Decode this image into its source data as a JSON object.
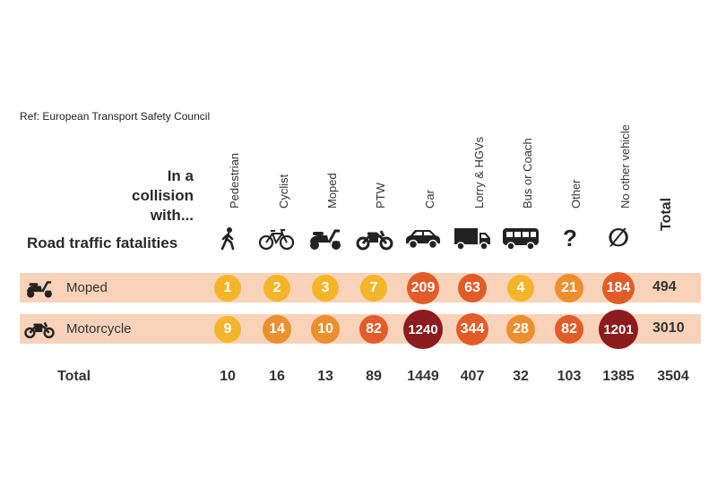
{
  "ref": "Ref: European Transport Safety Council",
  "intro": [
    "In a",
    "collision",
    "with..."
  ],
  "row_header": "Road traffic fatalities",
  "total_header": "Total",
  "total_row_label": "Total",
  "colors": {
    "band": "#f8d3b9",
    "low": "#f5b52a",
    "mid": "#ec8f2e",
    "high": "#e25c29",
    "top": "#8c1c1d"
  },
  "icons": [
    "pedestrian-icon",
    "bicycle-icon",
    "moped-icon",
    "motorcycle-icon",
    "car-icon",
    "lorry-icon",
    "bus-icon",
    "question-mark-icon",
    "empty-set-icon"
  ],
  "chart_data": {
    "type": "table",
    "columns": [
      "Pedestrian",
      "Cyclist",
      "Moped",
      "PTW",
      "Car",
      "Lorry & HGVs",
      "Bus or Coach",
      "Other",
      "No other vehicle"
    ],
    "rows": [
      {
        "name": "Moped",
        "values": [
          1,
          2,
          3,
          7,
          209,
          63,
          4,
          21,
          184
        ],
        "total": 494
      },
      {
        "name": "Motorcycle",
        "values": [
          9,
          14,
          10,
          82,
          1240,
          344,
          28,
          82,
          1201
        ],
        "total": 3010
      }
    ],
    "column_totals": [
      10,
      16,
      13,
      89,
      1449,
      407,
      32,
      103,
      1385
    ],
    "grand_total": 3504
  }
}
